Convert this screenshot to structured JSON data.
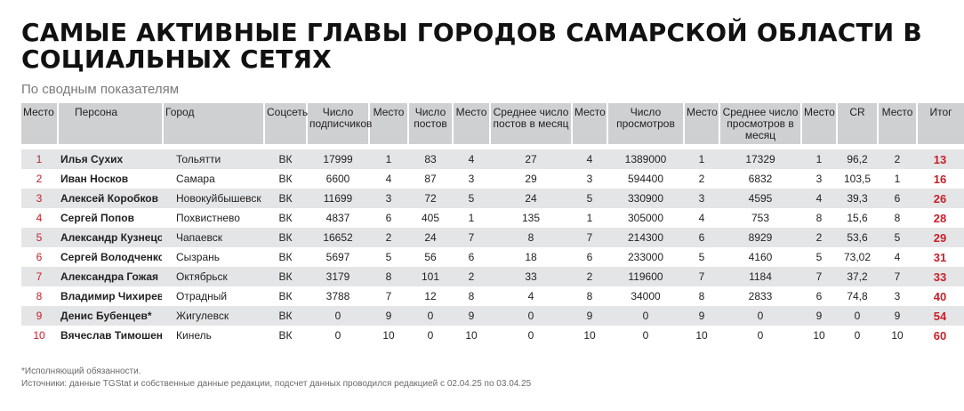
{
  "title": "САМЫЕ АКТИВНЫЕ ГЛАВЫ ГОРОДОВ САМАРСКОЙ ОБЛАСТИ В СОЦИАЛЬНЫХ СЕТЯХ",
  "subtitle": "По сводным показателям",
  "headers": [
    "Место",
    "Персона",
    "Город",
    "Соцсеть",
    "Число подписчиков",
    "Место",
    "Число постов",
    "Место",
    "Среднее число постов в месяц",
    "Место",
    "Число просмотров",
    "Место",
    "Среднее число просмотров в месяц",
    "Место",
    "CR",
    "Место",
    "Итог"
  ],
  "rows": [
    [
      "1",
      "Илья Сухих",
      "Тольятти",
      "ВК",
      "17999",
      "1",
      "83",
      "4",
      "27",
      "4",
      "1389000",
      "1",
      "17329",
      "1",
      "96,2",
      "2",
      "13"
    ],
    [
      "2",
      "Иван Носков",
      "Самара",
      "ВК",
      "6600",
      "4",
      "87",
      "3",
      "29",
      "3",
      "594400",
      "2",
      "6832",
      "3",
      "103,5",
      "1",
      "16"
    ],
    [
      "3",
      "Алексей Коробков",
      "Новокуйбышевск",
      "ВК",
      "11699",
      "3",
      "72",
      "5",
      "24",
      "5",
      "330900",
      "3",
      "4595",
      "4",
      "39,3",
      "6",
      "26"
    ],
    [
      "4",
      "Сергей Попов",
      "Похвистнево",
      "ВК",
      "4837",
      "6",
      "405",
      "1",
      "135",
      "1",
      "305000",
      "4",
      "753",
      "8",
      "15,6",
      "8",
      "28"
    ],
    [
      "5",
      "Александр Кузнецов",
      "Чапаевск",
      "ВК",
      "16652",
      "2",
      "24",
      "7",
      "8",
      "7",
      "214300",
      "6",
      "8929",
      "2",
      "53,6",
      "5",
      "29"
    ],
    [
      "6",
      "Сергей Володченков",
      "Сызрань",
      "ВК",
      "5697",
      "5",
      "56",
      "6",
      "18",
      "6",
      "233000",
      "5",
      "4160",
      "5",
      "73,02",
      "4",
      "31"
    ],
    [
      "7",
      "Александра Гожая",
      "Октябрьск",
      "ВК",
      "3179",
      "8",
      "101",
      "2",
      "33",
      "2",
      "119600",
      "7",
      "1184",
      "7",
      "37,2",
      "7",
      "33"
    ],
    [
      "8",
      "Владимир Чихирев",
      "Отрадный",
      "ВК",
      "3788",
      "7",
      "12",
      "8",
      "4",
      "8",
      "34000",
      "8",
      "2833",
      "6",
      "74,8",
      "3",
      "40"
    ],
    [
      "9",
      "Денис Бубенцев*",
      "Жигулевск",
      "ВК",
      "0",
      "9",
      "0",
      "9",
      "0",
      "9",
      "0",
      "9",
      "0",
      "9",
      "0",
      "9",
      "54"
    ],
    [
      "10",
      "Вячеслав Тимошенко",
      "Кинель",
      "ВК",
      "0",
      "10",
      "0",
      "10",
      "0",
      "10",
      "0",
      "10",
      "0",
      "10",
      "0",
      "10",
      "60"
    ]
  ],
  "note": "*Исполняющий обязанности.",
  "sources": "Источники: данные TGStat и собственные данные редакции, подсчет данных проводился редакцией с 02.04.25 по 03.04.25",
  "colors": {
    "accent_red": "#c8202a",
    "header_bg": "#cfd0d2",
    "stripe": "#e4e5e7"
  }
}
